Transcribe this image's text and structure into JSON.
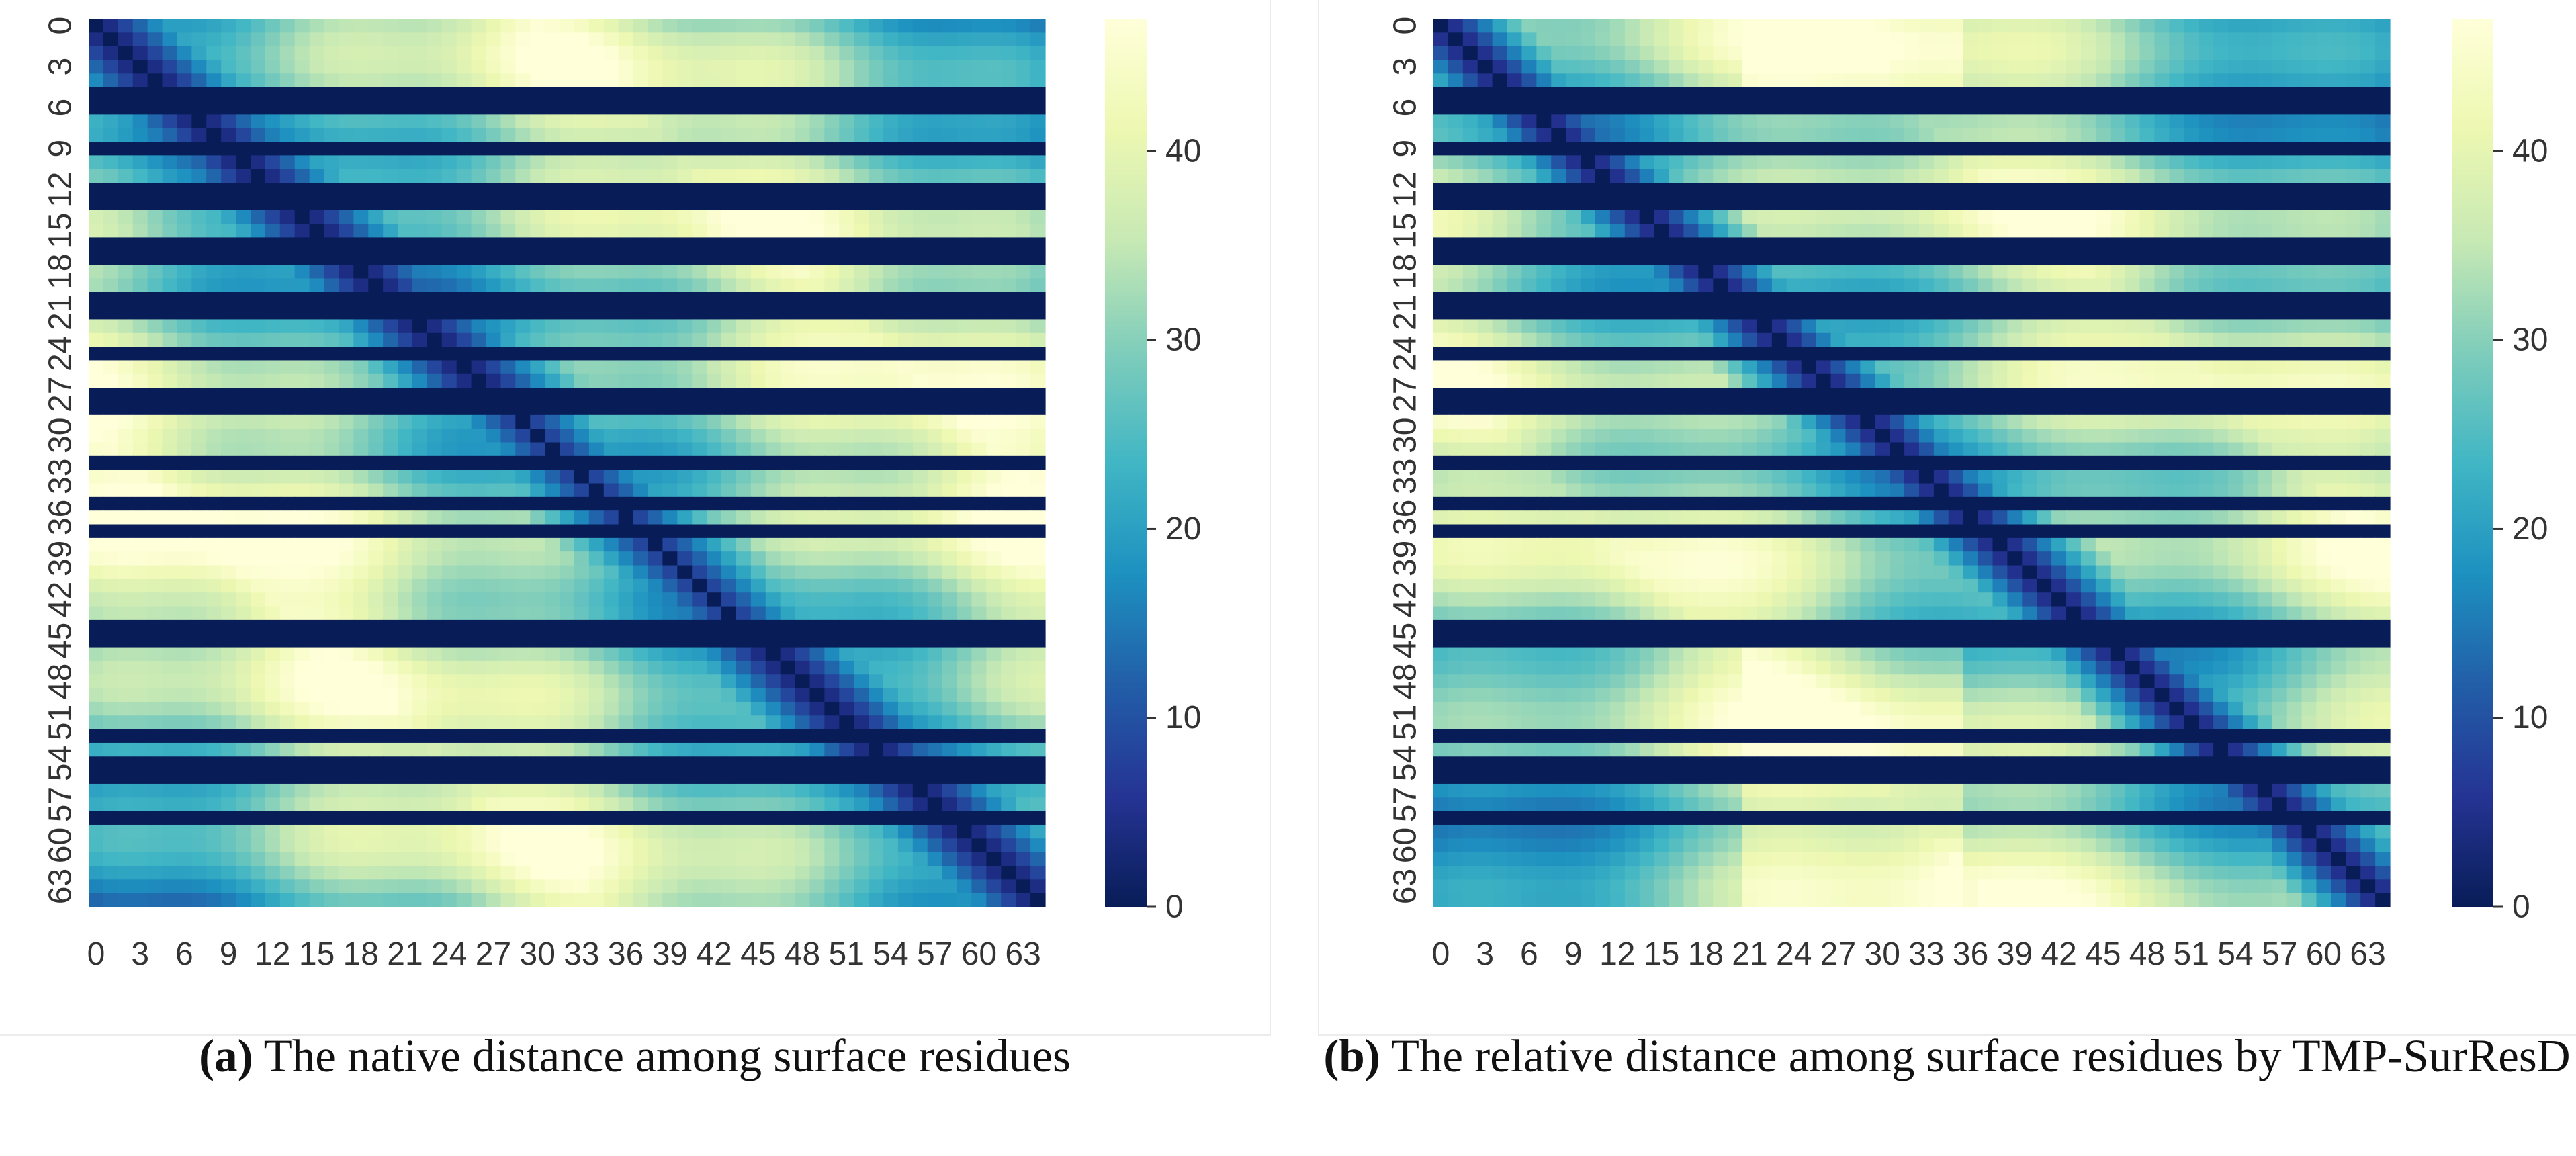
{
  "chart_data": [
    {
      "type": "heatmap",
      "id": "panel-a",
      "title": "",
      "caption_label": "(a)",
      "caption_text": "The native distance among surface residues",
      "n": 65,
      "x_tick_labels": [
        "0",
        "3",
        "6",
        "9",
        "12",
        "15",
        "18",
        "21",
        "24",
        "27",
        "30",
        "33",
        "36",
        "39",
        "42",
        "45",
        "48",
        "51",
        "54",
        "57",
        "60",
        "63"
      ],
      "y_tick_labels": [
        "0",
        "3",
        "6",
        "9",
        "12",
        "15",
        "18",
        "21",
        "24",
        "27",
        "30",
        "33",
        "36",
        "39",
        "42",
        "45",
        "48",
        "51",
        "54",
        "57",
        "60",
        "63"
      ],
      "masked_rows": [
        5,
        6,
        9,
        12,
        13,
        16,
        17,
        20,
        21,
        24,
        27,
        28,
        32,
        35,
        37,
        44,
        45,
        52,
        54,
        55,
        58
      ],
      "colorbar": {
        "min": 0,
        "max": 47,
        "ticks": [
          "0",
          "10",
          "20",
          "30",
          "40"
        ],
        "colormap": "YlGnBu"
      },
      "diagonal": "zero",
      "description_values": "pairwise distance, 0 on diagonal, up to ~47"
    },
    {
      "type": "heatmap",
      "id": "panel-b",
      "title": "",
      "caption_label": "(b)",
      "caption_text": "The relative distance among surface residues by TMP-SurResD",
      "n": 65,
      "x_tick_labels": [
        "0",
        "3",
        "6",
        "9",
        "12",
        "15",
        "18",
        "21",
        "24",
        "27",
        "30",
        "33",
        "36",
        "39",
        "42",
        "45",
        "48",
        "51",
        "54",
        "57",
        "60",
        "63"
      ],
      "y_tick_labels": [
        "0",
        "3",
        "6",
        "9",
        "12",
        "15",
        "18",
        "21",
        "24",
        "27",
        "30",
        "33",
        "36",
        "39",
        "42",
        "45",
        "48",
        "51",
        "54",
        "57",
        "60",
        "63"
      ],
      "masked_rows": [
        5,
        6,
        9,
        12,
        13,
        16,
        17,
        20,
        21,
        24,
        27,
        28,
        32,
        35,
        37,
        44,
        45,
        52,
        54,
        55,
        58
      ],
      "colorbar": {
        "min": 0,
        "max": 47,
        "ticks": [
          "0",
          "10",
          "20",
          "30",
          "40"
        ],
        "colormap": "YlGnBu"
      },
      "diagonal": "zero",
      "description_values": "predicted distance, 0 on diagonal, up to ~47"
    }
  ],
  "colors": {
    "masked_row": "#081d58",
    "tick_text": "#333333",
    "caption_text": "#111111"
  }
}
